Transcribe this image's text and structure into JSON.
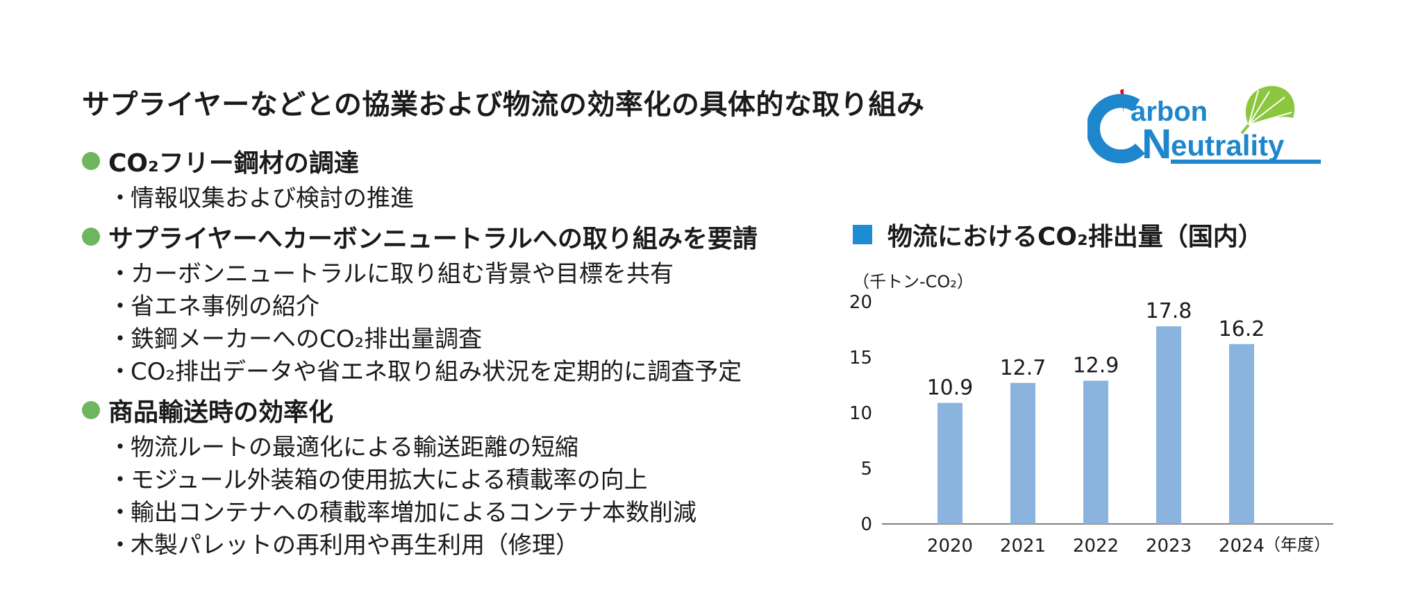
{
  "page": {
    "title": "サプライヤーなどとの協業および物流の効率化の具体的な取り組み"
  },
  "logo": {
    "line1": "arbon",
    "line2": "eutrality",
    "initial_c": "C",
    "initial_n": "N",
    "icon": "ginkgo-leaf-icon",
    "colors": {
      "blue": "#1E86CC",
      "green": "#8CC63F",
      "red": "#E60012"
    }
  },
  "sections": [
    {
      "title": "CO₂フリー鋼材の調達",
      "items": [
        "情報収集および検討の推進"
      ]
    },
    {
      "title": "サプライヤーへカーボンニュートラルへの取り組みを要請",
      "items": [
        "カーボンニュートラルに取り組む背景や目標を共有",
        "省エネ事例の紹介",
        "鉄鋼メーカーへのCO₂排出量調査",
        "CO₂排出データや省エネ取り組み状況を定期的に調査予定"
      ]
    },
    {
      "title": "商品輸送時の効率化",
      "items": [
        "物流ルートの最適化による輸送距離の短縮",
        "モジュール外装箱の使用拡大による積載率の向上",
        "輸出コンテナへの積載率増加によるコンテナ本数削減",
        "木製パレットの再利用や再生利用（修理）"
      ]
    }
  ],
  "bullet_symbol": "・",
  "colors": {
    "section_dot": "#6DB55E",
    "chart_square": "#1E8CD3",
    "bar": "#8AB3DE",
    "axis": "#555555"
  },
  "chart_data": {
    "type": "bar",
    "title": "物流におけるCO₂排出量（国内）",
    "ylabel": "（千トン-CO₂）",
    "xlabel_suffix": "（年度）",
    "categories": [
      "2020",
      "2021",
      "2022",
      "2023",
      "2024"
    ],
    "values": [
      10.9,
      12.7,
      12.9,
      17.8,
      16.2
    ],
    "value_labels": [
      "10.9",
      "12.7",
      "12.9",
      "17.8",
      "16.2"
    ],
    "yticks": [
      "0",
      "5",
      "10",
      "15",
      "20"
    ],
    "ylim": [
      0,
      20
    ],
    "grid": false,
    "legend": "none"
  }
}
